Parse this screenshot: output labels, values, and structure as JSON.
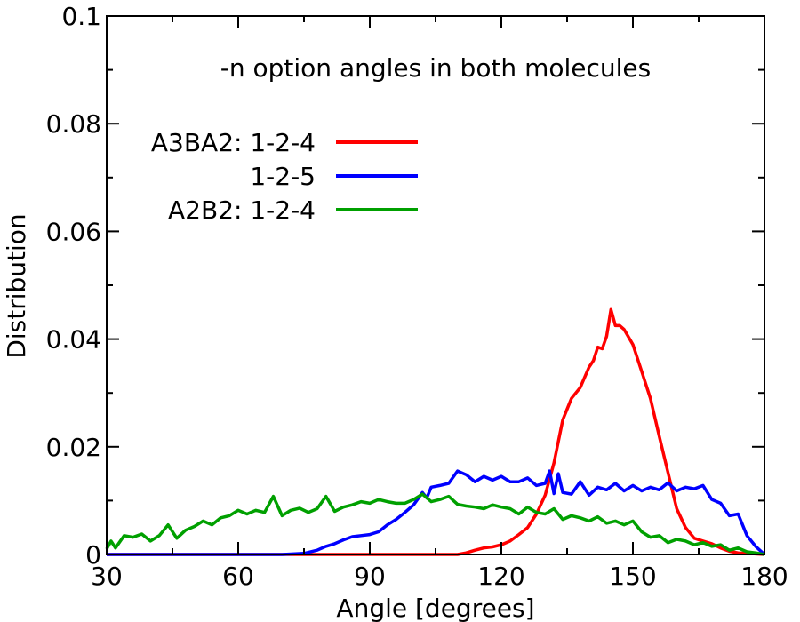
{
  "chart_data": {
    "type": "line",
    "title": "",
    "annotation": "-n option angles in both molecules",
    "xlabel": "Angle [degrees]",
    "ylabel": "Distribution",
    "xlim": [
      30,
      180
    ],
    "ylim": [
      0,
      0.1
    ],
    "xticks": [
      30,
      60,
      90,
      120,
      150,
      180
    ],
    "xtick_labels": [
      "30",
      "60",
      "90",
      "120",
      "150",
      "180"
    ],
    "yticks": [
      0,
      0.02,
      0.04,
      0.06,
      0.08,
      0.1
    ],
    "ytick_labels": [
      "0",
      "0.02",
      "0.04",
      "0.06",
      "0.08",
      "0.1"
    ],
    "grid": false,
    "legend_position": "upper-left",
    "series": [
      {
        "name": "A3BA2: 1-2-4",
        "color": "#ff0000",
        "x": [
          30,
          75,
          100,
          110,
          112,
          114,
          116,
          118,
          120,
          122,
          124,
          126,
          128,
          130,
          132,
          134,
          136,
          138,
          140,
          141,
          142,
          143,
          144,
          145,
          146,
          147,
          148,
          150,
          152,
          154,
          156,
          158,
          160,
          162,
          164,
          166,
          168,
          170,
          172,
          174,
          176,
          178,
          180
        ],
        "y": [
          0,
          0,
          0,
          0,
          0.0003,
          0.0008,
          0.0012,
          0.0014,
          0.0018,
          0.0025,
          0.0037,
          0.005,
          0.0075,
          0.011,
          0.017,
          0.025,
          0.029,
          0.031,
          0.0348,
          0.036,
          0.0385,
          0.0382,
          0.0405,
          0.0455,
          0.0425,
          0.0425,
          0.0418,
          0.039,
          0.034,
          0.029,
          0.022,
          0.0152,
          0.0085,
          0.005,
          0.003,
          0.0025,
          0.002,
          0.0012,
          0.0006,
          0.0003,
          0.0002,
          0.0001,
          0
        ]
      },
      {
        "name": "1-2-5",
        "color": "#0000ff",
        "x": [
          30,
          70,
          75,
          78,
          80,
          82,
          84,
          86,
          88,
          90,
          92,
          94,
          96,
          98,
          100,
          102,
          103,
          104,
          106,
          108,
          110,
          112,
          114,
          116,
          118,
          120,
          122,
          124,
          126,
          128,
          130,
          131,
          132,
          133,
          134,
          136,
          138,
          140,
          142,
          144,
          146,
          148,
          150,
          152,
          154,
          156,
          158,
          160,
          162,
          164,
          166,
          168,
          170,
          172,
          174,
          176,
          178,
          180
        ],
        "y": [
          0,
          0,
          0.0002,
          0.0008,
          0.0015,
          0.002,
          0.0027,
          0.0033,
          0.0035,
          0.0037,
          0.0042,
          0.0055,
          0.0065,
          0.0078,
          0.0092,
          0.0115,
          0.0105,
          0.0125,
          0.0128,
          0.0132,
          0.0155,
          0.0148,
          0.0135,
          0.0145,
          0.0138,
          0.0145,
          0.0135,
          0.0135,
          0.0142,
          0.0128,
          0.0132,
          0.0155,
          0.0113,
          0.015,
          0.0115,
          0.0112,
          0.0135,
          0.011,
          0.0125,
          0.012,
          0.0132,
          0.0118,
          0.0128,
          0.0118,
          0.0125,
          0.012,
          0.0133,
          0.0118,
          0.0125,
          0.0122,
          0.0128,
          0.0102,
          0.0095,
          0.0072,
          0.0075,
          0.0035,
          0.0015,
          0
        ]
      },
      {
        "name": "A2B2: 1-2-4",
        "color": "#00a000",
        "x": [
          30,
          31,
          32,
          34,
          36,
          38,
          40,
          42,
          44,
          46,
          48,
          50,
          52,
          54,
          56,
          58,
          60,
          62,
          64,
          66,
          68,
          70,
          72,
          74,
          76,
          78,
          80,
          82,
          84,
          86,
          88,
          90,
          92,
          94,
          96,
          98,
          100,
          102,
          104,
          106,
          108,
          110,
          112,
          114,
          116,
          118,
          120,
          122,
          124,
          126,
          128,
          130,
          132,
          134,
          136,
          138,
          140,
          142,
          144,
          146,
          148,
          150,
          152,
          154,
          156,
          158,
          160,
          162,
          164,
          166,
          168,
          170,
          172,
          174,
          176,
          178,
          180
        ],
        "y": [
          0.001,
          0.0025,
          0.0012,
          0.0035,
          0.0032,
          0.0038,
          0.0025,
          0.0035,
          0.0055,
          0.003,
          0.0045,
          0.0052,
          0.0062,
          0.0055,
          0.0068,
          0.0072,
          0.0082,
          0.0075,
          0.0082,
          0.0078,
          0.0108,
          0.0072,
          0.0082,
          0.0086,
          0.0078,
          0.0085,
          0.0108,
          0.008,
          0.0088,
          0.0092,
          0.0098,
          0.0095,
          0.0102,
          0.0098,
          0.0095,
          0.0095,
          0.0102,
          0.0112,
          0.0098,
          0.0102,
          0.0108,
          0.0093,
          0.009,
          0.0088,
          0.0085,
          0.0092,
          0.0088,
          0.0085,
          0.0075,
          0.0088,
          0.0078,
          0.0075,
          0.0085,
          0.0065,
          0.0072,
          0.0068,
          0.0062,
          0.007,
          0.0058,
          0.0062,
          0.0055,
          0.0062,
          0.0042,
          0.0032,
          0.0035,
          0.0022,
          0.0028,
          0.0025,
          0.0018,
          0.0022,
          0.0015,
          0.0018,
          0.0008,
          0.0012,
          0.0005,
          0.0003,
          0
        ]
      }
    ]
  }
}
